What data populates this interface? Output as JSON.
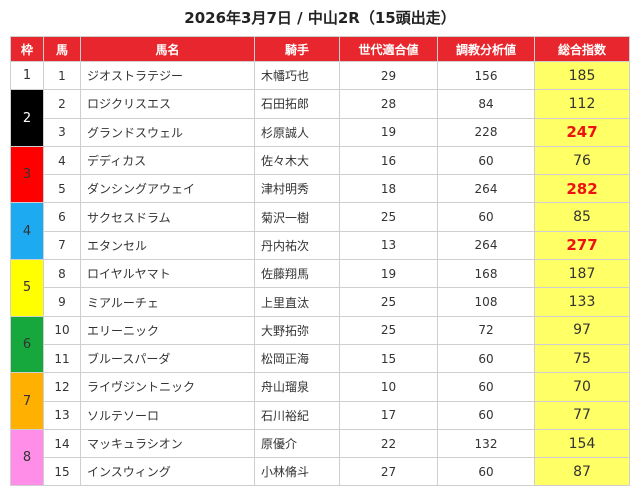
{
  "title": "2026年3月7日 / 中山2R（15頭出走）",
  "headers": {
    "waku": "枠",
    "umaban": "馬",
    "horse": "馬名",
    "jockey": "騎手",
    "generation": "世代適合値",
    "training": "調教分析値",
    "total": "総合指数"
  },
  "wakus": [
    {
      "label": "1",
      "bg": "#ffffff",
      "fg": "#333333"
    },
    {
      "label": "2",
      "bg": "#000000",
      "fg": "#ffffff"
    },
    {
      "label": "3",
      "bg": "#ff0000",
      "fg": "#333333"
    },
    {
      "label": "4",
      "bg": "#1eaaf1",
      "fg": "#333333"
    },
    {
      "label": "5",
      "bg": "#ffff00",
      "fg": "#333333"
    },
    {
      "label": "6",
      "bg": "#16a83c",
      "fg": "#333333"
    },
    {
      "label": "7",
      "bg": "#ffb000",
      "fg": "#333333"
    },
    {
      "label": "8",
      "bg": "#ff8ee8",
      "fg": "#333333"
    }
  ],
  "rows": [
    {
      "waku": "1",
      "num": "1",
      "horse": "ジオストラテジー",
      "jockey": "木幡巧也",
      "generation": "29",
      "training": "156",
      "total": "185",
      "highlight": false
    },
    {
      "waku": "2",
      "num": "2",
      "horse": "ロジクリスエス",
      "jockey": "石田拓郎",
      "generation": "28",
      "training": "84",
      "total": "112",
      "highlight": false
    },
    {
      "waku": "2",
      "num": "3",
      "horse": "グランドスウェル",
      "jockey": "杉原誠人",
      "generation": "19",
      "training": "228",
      "total": "247",
      "highlight": true
    },
    {
      "waku": "3",
      "num": "4",
      "horse": "デディカス",
      "jockey": "佐々木大",
      "generation": "16",
      "training": "60",
      "total": "76",
      "highlight": false
    },
    {
      "waku": "3",
      "num": "5",
      "horse": "ダンシングアウェイ",
      "jockey": "津村明秀",
      "generation": "18",
      "training": "264",
      "total": "282",
      "highlight": true
    },
    {
      "waku": "4",
      "num": "6",
      "horse": "サクセスドラム",
      "jockey": "菊沢一樹",
      "generation": "25",
      "training": "60",
      "total": "85",
      "highlight": false
    },
    {
      "waku": "4",
      "num": "7",
      "horse": "エタンセル",
      "jockey": "丹内祐次",
      "generation": "13",
      "training": "264",
      "total": "277",
      "highlight": true
    },
    {
      "waku": "5",
      "num": "8",
      "horse": "ロイヤルヤマト",
      "jockey": "佐藤翔馬",
      "generation": "19",
      "training": "168",
      "total": "187",
      "highlight": false
    },
    {
      "waku": "5",
      "num": "9",
      "horse": "ミアルーチェ",
      "jockey": "上里直汰",
      "generation": "25",
      "training": "108",
      "total": "133",
      "highlight": false
    },
    {
      "waku": "6",
      "num": "10",
      "horse": "エリーニック",
      "jockey": "大野拓弥",
      "generation": "25",
      "training": "72",
      "total": "97",
      "highlight": false
    },
    {
      "waku": "6",
      "num": "11",
      "horse": "ブルースパーダ",
      "jockey": "松岡正海",
      "generation": "15",
      "training": "60",
      "total": "75",
      "highlight": false
    },
    {
      "waku": "7",
      "num": "12",
      "horse": "ライヴジントニック",
      "jockey": "舟山瑠泉",
      "generation": "10",
      "training": "60",
      "total": "70",
      "highlight": false
    },
    {
      "waku": "7",
      "num": "13",
      "horse": "ソルテソーロ",
      "jockey": "石川裕紀",
      "generation": "17",
      "training": "60",
      "total": "77",
      "highlight": false
    },
    {
      "waku": "8",
      "num": "14",
      "horse": "マッキュラシオン",
      "jockey": "原優介",
      "generation": "22",
      "training": "132",
      "total": "154",
      "highlight": false
    },
    {
      "waku": "8",
      "num": "15",
      "horse": "インスウィング",
      "jockey": "小林脩斗",
      "generation": "27",
      "training": "60",
      "total": "87",
      "highlight": false
    }
  ]
}
